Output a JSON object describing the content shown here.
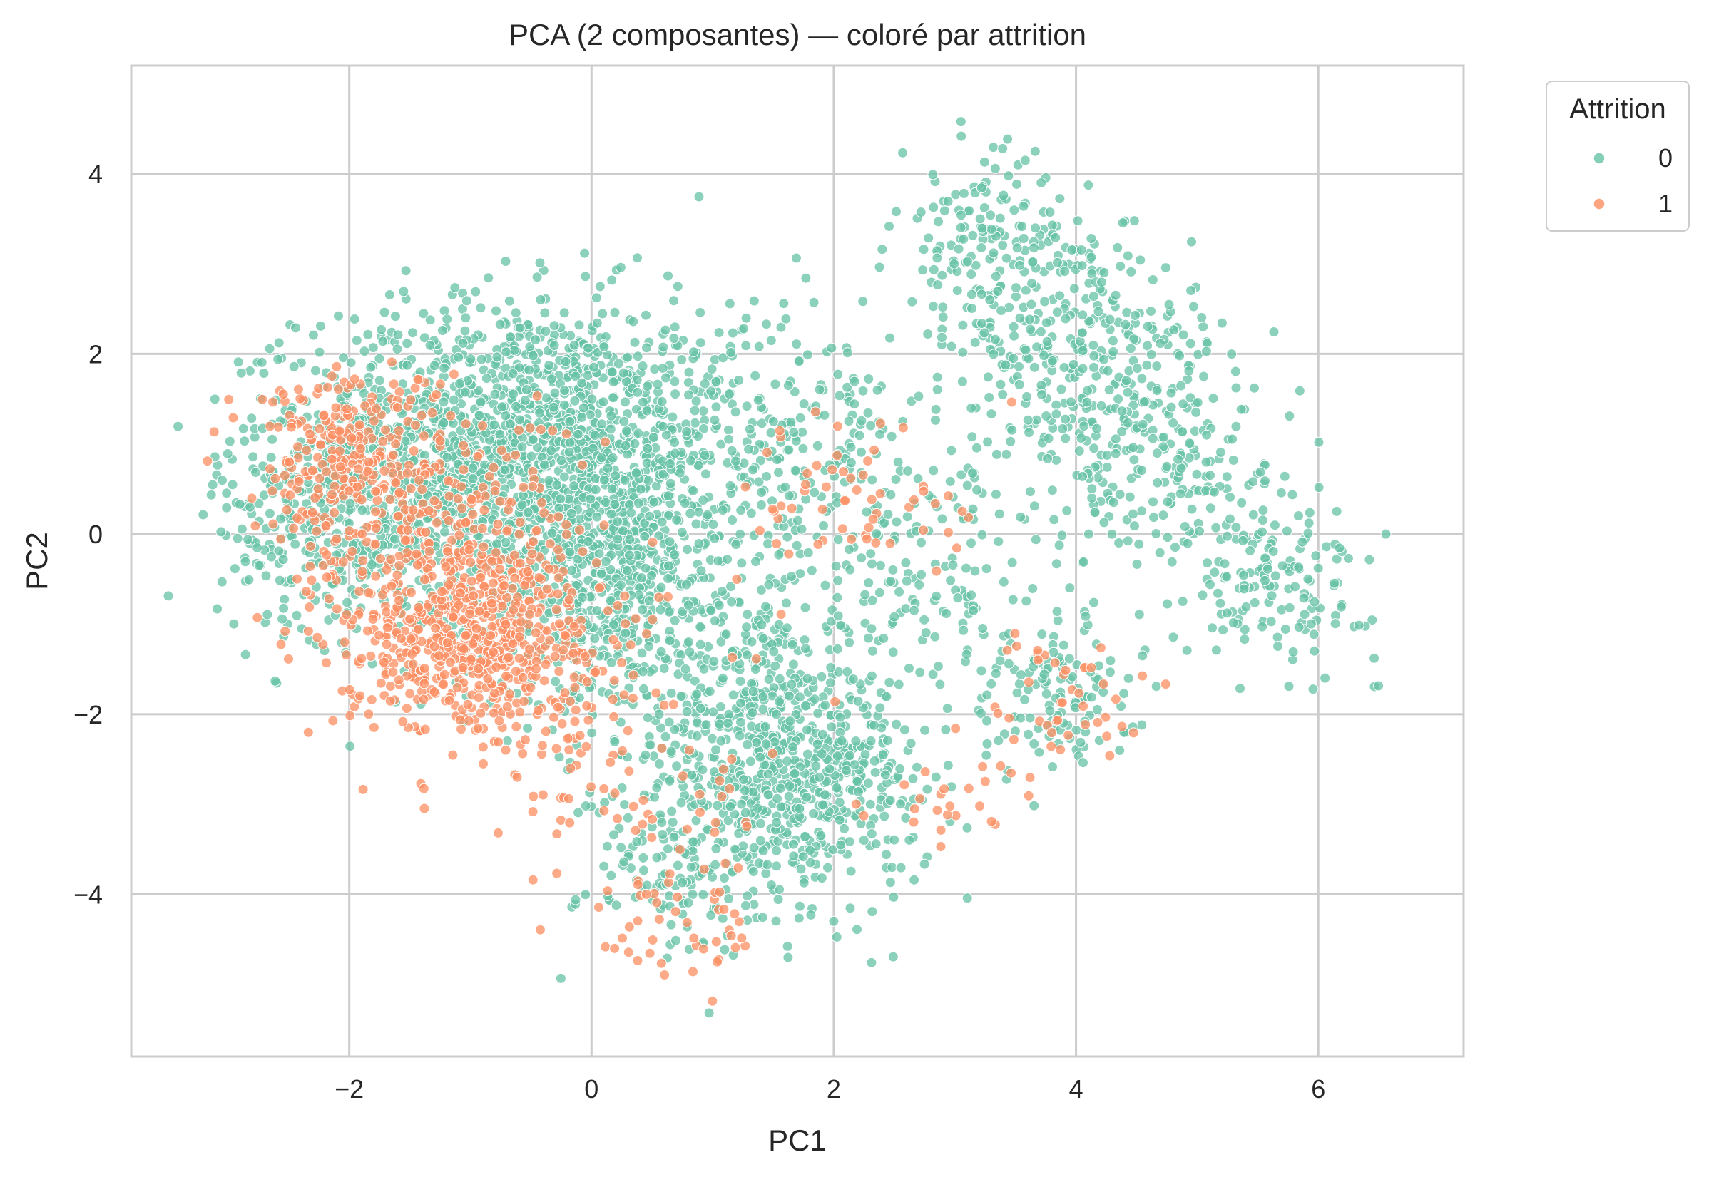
{
  "chart_data": {
    "type": "scatter",
    "title": "PCA (2 composantes) — coloré par attrition",
    "xlabel": "PC1",
    "ylabel": "PC2",
    "xlim": [
      -3.8,
      7.2
    ],
    "ylim": [
      -5.8,
      5.2
    ],
    "xticks": [
      -2,
      0,
      2,
      4,
      6
    ],
    "yticks": [
      -4,
      -2,
      0,
      2,
      4
    ],
    "xtick_labels": [
      "−2",
      "0",
      "2",
      "4",
      "6"
    ],
    "ytick_labels": [
      "−4",
      "−2",
      "0",
      "2",
      "4"
    ],
    "grid": true,
    "legend": {
      "title": "Attrition",
      "placement": "outside-top-right",
      "entries": [
        {
          "label": "0",
          "color": "#66c2a5"
        },
        {
          "label": "1",
          "color": "#fc8d62"
        }
      ]
    },
    "series": [
      {
        "name": "0",
        "color": "#66c2a5",
        "clusters": [
          {
            "cx": -0.6,
            "cy": 1.0,
            "sx": 0.9,
            "sy": 0.8,
            "n": 1500
          },
          {
            "cx": -1.9,
            "cy": 0.2,
            "sx": 0.6,
            "sy": 0.7,
            "n": 450
          },
          {
            "cx": 0.2,
            "cy": -0.5,
            "sx": 0.6,
            "sy": 0.8,
            "n": 650
          },
          {
            "cx": 1.5,
            "cy": -2.3,
            "sx": 0.6,
            "sy": 0.7,
            "n": 550
          },
          {
            "cx": 1.8,
            "cy": -3.0,
            "sx": 0.5,
            "sy": 0.5,
            "n": 250
          },
          {
            "cx": 0.7,
            "cy": -3.7,
            "sx": 0.4,
            "sy": 0.5,
            "n": 120
          },
          {
            "cx": 1.8,
            "cy": 0.9,
            "sx": 0.7,
            "sy": 0.8,
            "n": 250
          },
          {
            "cx": 3.3,
            "cy": 3.2,
            "sx": 0.4,
            "sy": 0.5,
            "n": 160
          },
          {
            "cx": 4.0,
            "cy": 2.0,
            "sx": 0.5,
            "sy": 0.7,
            "n": 260
          },
          {
            "cx": 4.6,
            "cy": 1.2,
            "sx": 0.5,
            "sy": 0.6,
            "n": 170
          },
          {
            "cx": 5.7,
            "cy": -0.6,
            "sx": 0.4,
            "sy": 0.4,
            "n": 130
          },
          {
            "cx": 3.8,
            "cy": -1.8,
            "sx": 0.35,
            "sy": 0.45,
            "n": 130
          },
          {
            "cx": 2.8,
            "cy": -0.5,
            "sx": 0.5,
            "sy": 0.6,
            "n": 110
          },
          {
            "cx": 5.0,
            "cy": 0.3,
            "sx": 0.5,
            "sy": 0.5,
            "n": 90
          }
        ]
      },
      {
        "name": "1",
        "color": "#fc8d62",
        "clusters": [
          {
            "cx": -1.0,
            "cy": -1.1,
            "sx": 0.55,
            "sy": 0.55,
            "n": 650
          },
          {
            "cx": -2.0,
            "cy": 0.9,
            "sx": 0.4,
            "sy": 0.5,
            "n": 230
          },
          {
            "cx": -1.3,
            "cy": 0.1,
            "sx": 0.6,
            "sy": 0.6,
            "n": 200
          },
          {
            "cx": 0.8,
            "cy": -4.3,
            "sx": 0.35,
            "sy": 0.4,
            "n": 45
          },
          {
            "cx": 2.3,
            "cy": 0.4,
            "sx": 0.5,
            "sy": 0.5,
            "n": 60
          },
          {
            "cx": 3.9,
            "cy": -1.8,
            "sx": 0.4,
            "sy": 0.4,
            "n": 45
          },
          {
            "cx": 3.0,
            "cy": -3.0,
            "sx": 0.4,
            "sy": 0.3,
            "n": 25
          },
          {
            "cx": 0.2,
            "cy": -2.6,
            "sx": 0.7,
            "sy": 0.7,
            "n": 90
          }
        ]
      }
    ]
  }
}
